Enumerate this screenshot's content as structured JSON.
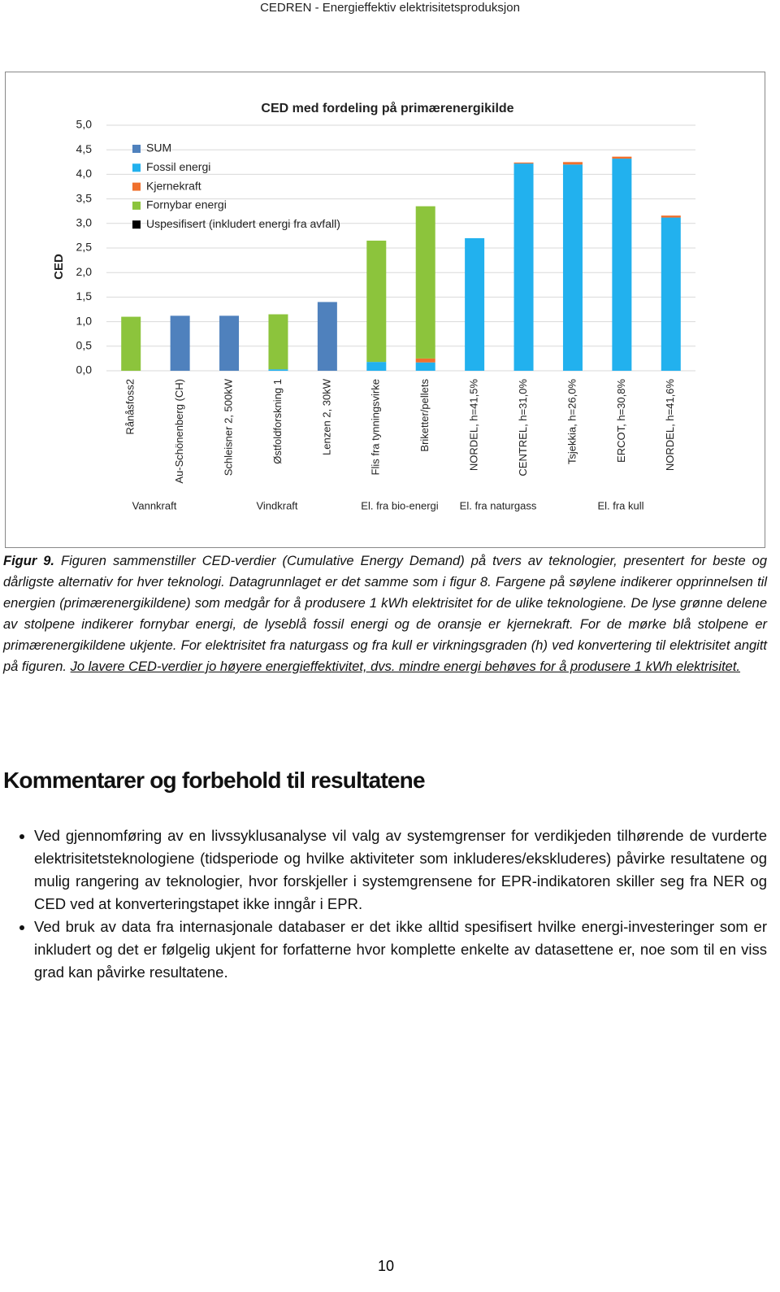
{
  "header": "CEDREN - Energieffektiv elektrisitetsproduksjon",
  "chart_data": {
    "type": "bar",
    "stacked": true,
    "title": "CED med fordeling på primærenergikilde",
    "y_label": "CED",
    "categories": [
      "Rånåsfoss2",
      "Au-Schönenberg (CH)",
      "Schleisner 2, 500kW",
      "Østfoldforskning 1",
      "Lenzen 2, 30kW",
      "Flis fra tynningsvirke",
      "Briketter/pellets",
      "NORDEL, h=41,5%",
      "CENTREL, h=31,0%",
      "Tsjekkia, h=26,0%",
      "ERCOT, h=30,8%",
      "NORDEL, h=41,6%"
    ],
    "groups": [
      "Vannkraft",
      "Vindkraft",
      "El. fra bio-energi",
      "El. fra naturgass",
      "El. fra kull"
    ],
    "series": [
      {
        "name": "SUM",
        "color": "#4f81bd",
        "values": [
          null,
          1.12,
          1.12,
          null,
          1.4,
          null,
          null,
          null,
          null,
          null,
          null,
          null
        ]
      },
      {
        "name": "Fossil energi",
        "color": "#22b1ee",
        "values": [
          null,
          null,
          null,
          0.03,
          null,
          0.18,
          0.17,
          2.7,
          4.22,
          4.2,
          4.32,
          3.12
        ]
      },
      {
        "name": "Kjernekraft",
        "color": "#f0702d",
        "values": [
          null,
          null,
          null,
          null,
          null,
          null,
          0.08,
          null,
          0.02,
          0.05,
          0.04,
          0.04
        ]
      },
      {
        "name": "Fornybar energi",
        "color": "#8cc43c",
        "values": [
          1.1,
          null,
          null,
          1.12,
          null,
          2.47,
          3.1,
          null,
          null,
          null,
          null,
          null
        ]
      },
      {
        "name": "Uspesifisert (inkludert energi fra avfall)",
        "color": "#000000",
        "values": [
          null,
          null,
          null,
          null,
          null,
          null,
          null,
          null,
          null,
          null,
          null,
          null
        ]
      }
    ],
    "ylim": [
      0,
      5
    ],
    "yticks": [
      {
        "value": 0,
        "label": "0,0"
      },
      {
        "value": 0.5,
        "label": "0,5"
      },
      {
        "value": 1,
        "label": "1,0"
      },
      {
        "value": 1.5,
        "label": "1,5"
      },
      {
        "value": 2,
        "label": "2,0"
      },
      {
        "value": 2.5,
        "label": "2,5"
      },
      {
        "value": 3,
        "label": "3,0"
      },
      {
        "value": 3.5,
        "label": "3,5"
      },
      {
        "value": 4,
        "label": "4,0"
      },
      {
        "value": 4.5,
        "label": "4,5"
      },
      {
        "value": 5,
        "label": "5,0"
      }
    ],
    "grid": true,
    "legend": "top-left"
  },
  "caption": {
    "label": "Figur 9.",
    "text": "Figuren sammenstiller CED-verdier (Cumulative Energy Demand) på tvers av teknologier, presentert for beste og dårligste alternativ for hver teknologi. Datagrunnlaget er det samme som i figur 8. Fargene på søylene indikerer opprinnelsen til energien (primærenergikildene) som medgår for å produsere 1 kWh elektrisitet for de ulike teknologiene. De lyse grønne delene av stolpene indikerer fornybar energi, de lyseblå fossil energi og de oransje er kjernekraft. For de mørke blå stolpene er primærenergikildene ukjente. For elektrisitet fra naturgass og fra kull er virkningsgraden (h) ved konvertering til elektrisitet angitt på figuren.",
    "underlined": "Jo lavere CED-verdier jo høyere energieffektivitet, dvs. mindre energi behøves for å produsere 1 kWh elektrisitet."
  },
  "section": {
    "heading": "Kommentarer og forbehold til resultatene",
    "bullets": [
      "Ved gjennomføring av en livssyklusanalyse vil valg av systemgrenser for verdikjeden tilhørende de vurderte elektrisitetsteknologiene (tidsperiode og hvilke aktiviteter som inkluderes/ekskluderes) påvirke resultatene og mulig rangering av teknologier, hvor forskjeller i systemgrensene for EPR-indikatoren skiller seg fra NER og CED ved at konverteringstapet ikke inngår i EPR.",
      "Ved bruk av data fra internasjonale databaser er det ikke alltid spesifisert hvilke energi-investeringer som er inkludert og det er følgelig ukjent for forfatterne hvor komplette enkelte av datasettene er, noe som til en viss grad kan påvirke resultatene."
    ]
  },
  "page_number": "10"
}
